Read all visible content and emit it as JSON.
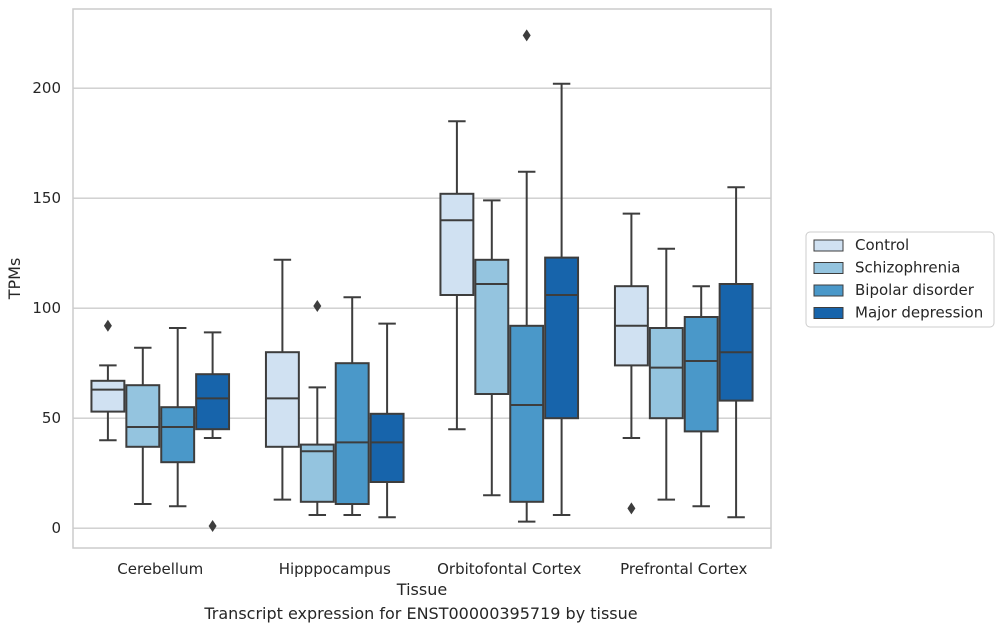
{
  "chart_data": {
    "type": "box",
    "xlabel": "Tissue",
    "ylabel": "TPMs",
    "ylim": [
      -9,
      236
    ],
    "yticks": [
      0,
      50,
      100,
      150,
      200
    ],
    "grid": "horizontal",
    "legend_position": "right",
    "categories": [
      "Cerebellum",
      "Hipppocampus",
      "Orbitofontal Cortex",
      "Prefrontal Cortex"
    ],
    "series": [
      {
        "name": "Control",
        "color": "#d0e1f2",
        "boxes": [
          {
            "low": 40,
            "q1": 53,
            "median": 63,
            "q3": 67,
            "high": 74,
            "outliers": [
              92
            ]
          },
          {
            "low": 13,
            "q1": 37,
            "median": 59,
            "q3": 80,
            "high": 122,
            "outliers": []
          },
          {
            "low": 45,
            "q1": 106,
            "median": 140,
            "q3": 152,
            "high": 185,
            "outliers": []
          },
          {
            "low": 41,
            "q1": 74,
            "median": 92,
            "q3": 110,
            "high": 143,
            "outliers": [
              9
            ]
          }
        ]
      },
      {
        "name": "Schizophrenia",
        "color": "#94c4df",
        "boxes": [
          {
            "low": 11,
            "q1": 37,
            "median": 46,
            "q3": 65,
            "high": 82,
            "outliers": []
          },
          {
            "low": 6,
            "q1": 12,
            "median": 35,
            "q3": 38,
            "high": 64,
            "outliers": [
              101
            ]
          },
          {
            "low": 15,
            "q1": 61,
            "median": 111,
            "q3": 122,
            "high": 149,
            "outliers": []
          },
          {
            "low": 13,
            "q1": 50,
            "median": 73,
            "q3": 91,
            "high": 127,
            "outliers": []
          }
        ]
      },
      {
        "name": "Bipolar disorder",
        "color": "#4a98c9",
        "boxes": [
          {
            "low": 10,
            "q1": 30,
            "median": 46,
            "q3": 55,
            "high": 91,
            "outliers": []
          },
          {
            "low": 6,
            "q1": 11,
            "median": 39,
            "q3": 75,
            "high": 105,
            "outliers": []
          },
          {
            "low": 3,
            "q1": 12,
            "median": 56,
            "q3": 92,
            "high": 162,
            "outliers": [
              224
            ]
          },
          {
            "low": 10,
            "q1": 44,
            "median": 76,
            "q3": 96,
            "high": 110,
            "outliers": []
          }
        ]
      },
      {
        "name": "Major depression",
        "color": "#1764ab",
        "boxes": [
          {
            "low": 41,
            "q1": 45,
            "median": 59,
            "q3": 70,
            "high": 89,
            "outliers": [
              1
            ]
          },
          {
            "low": 5,
            "q1": 21,
            "median": 39,
            "q3": 52,
            "high": 93,
            "outliers": []
          },
          {
            "low": 6,
            "q1": 50,
            "median": 106,
            "q3": 123,
            "high": 202,
            "outliers": []
          },
          {
            "low": 5,
            "q1": 58,
            "median": 80,
            "q3": 111,
            "high": 155,
            "outliers": []
          }
        ]
      }
    ],
    "caption": "Transcript expression for ENST00000395719 by tissue"
  }
}
